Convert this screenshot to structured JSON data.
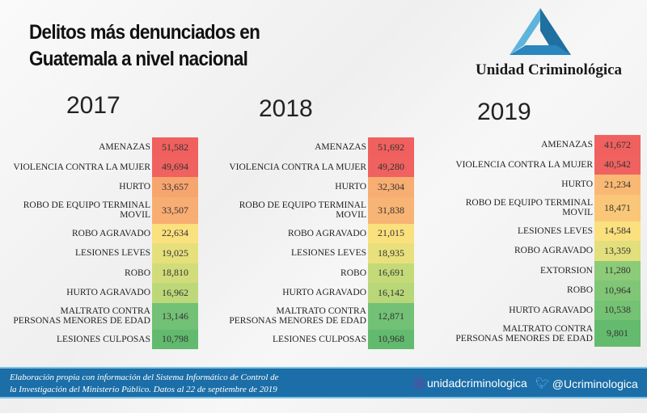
{
  "header": {
    "title_line1": "Delitos más denunciados en",
    "title_line2": "Guatemala a nivel nacional",
    "brand": "Unidad Criminológica"
  },
  "chart_data": [
    {
      "type": "table",
      "title": "2017",
      "rows": [
        {
          "label": "AMENAZAS",
          "value": "51,582",
          "color": "#f0605e"
        },
        {
          "label": "VIOLENCIA CONTRA  LA MUJER",
          "value": "49,694",
          "color": "#f0625f"
        },
        {
          "label": "HURTO",
          "value": "33,657",
          "color": "#f7a56f"
        },
        {
          "label": "ROBO DE EQUIPO  TERMINAL\nMOVIL",
          "value": "33,507",
          "color": "#f8ad72"
        },
        {
          "label": "ROBO AGRAVADO",
          "value": "22,634",
          "color": "#fbe07e"
        },
        {
          "label": "LESIONES LEVES",
          "value": "19,025",
          "color": "#e5e07c"
        },
        {
          "label": "ROBO",
          "value": "18,810",
          "color": "#d2dc7a"
        },
        {
          "label": "HURTO AGRAVADO",
          "value": "16,962",
          "color": "#bcd879"
        },
        {
          "label": "MALTRATO  CONTRA\nPERSONAS  MENORES DE EDAD",
          "value": "13,146",
          "color": "#72c176"
        },
        {
          "label": "LESIONES CULPOSAS",
          "value": "10,798",
          "color": "#62ba6e"
        }
      ]
    },
    {
      "type": "table",
      "title": "2018",
      "rows": [
        {
          "label": "AMENAZAS",
          "value": "51,692",
          "color": "#f0605e"
        },
        {
          "label": "VIOLENCIA CONTRA  LA MUJER",
          "value": "49,280",
          "color": "#f0625f"
        },
        {
          "label": "HURTO",
          "value": "32,304",
          "color": "#f8ad72"
        },
        {
          "label": "ROBO DE EQUIPO  TERMINAL\nMOVIL",
          "value": "31,838",
          "color": "#f8b474"
        },
        {
          "label": "ROBO AGRAVADO",
          "value": "21,015",
          "color": "#fbe07e"
        },
        {
          "label": "LESIONES LEVES",
          "value": "18,935",
          "color": "#e8e07c"
        },
        {
          "label": "ROBO",
          "value": "16,691",
          "color": "#c4da79"
        },
        {
          "label": "HURTO AGRAVADO",
          "value": "16,142",
          "color": "#b8d778"
        },
        {
          "label": "MALTRATO  CONTRA\nPERSONAS  MENORES DE EDAD",
          "value": "12,871",
          "color": "#72c176"
        },
        {
          "label": "LESIONES CULPOSAS",
          "value": "10,968",
          "color": "#62ba6e"
        }
      ]
    },
    {
      "type": "table",
      "title": "2019",
      "rows": [
        {
          "label": "AMENAZAS",
          "value": "41,672",
          "color": "#f0605e"
        },
        {
          "label": "VIOLENCIA CONTRA  LA MUJER",
          "value": "40,542",
          "color": "#f0625f"
        },
        {
          "label": "HURTO",
          "value": "21,234",
          "color": "#f9b974"
        },
        {
          "label": "ROBO DE EQUIPO  TERMINAL\nMOVIL",
          "value": "18,471",
          "color": "#fac778"
        },
        {
          "label": "LESIONES LEVES",
          "value": "14,584",
          "color": "#fbe07e"
        },
        {
          "label": "ROBO AGRAVADO",
          "value": "13,359",
          "color": "#e2df7c"
        },
        {
          "label": "EXTORSION",
          "value": "11,280",
          "color": "#8ccb78"
        },
        {
          "label": "ROBO",
          "value": "10,964",
          "color": "#80c676"
        },
        {
          "label": "HURTO AGRAVADO",
          "value": "10,538",
          "color": "#74c274"
        },
        {
          "label": "MALTRATO  CONTRA\nPERSONAS  MENORES DE EDAD",
          "value": "9,801",
          "color": "#64bb6e"
        }
      ]
    }
  ],
  "footer": {
    "source_line1": "Elaboración propia con información del Sistema Informático de Control de",
    "source_line2": "la Investigación del Ministerio Público.  Datos al 22  de septiembre de 2019",
    "facebook": "unidadcriminologica",
    "twitter": "@Ucriminologica"
  },
  "colors": {
    "footer_bg": "#1b6ea7",
    "footer_border": "#7cc3e6"
  }
}
